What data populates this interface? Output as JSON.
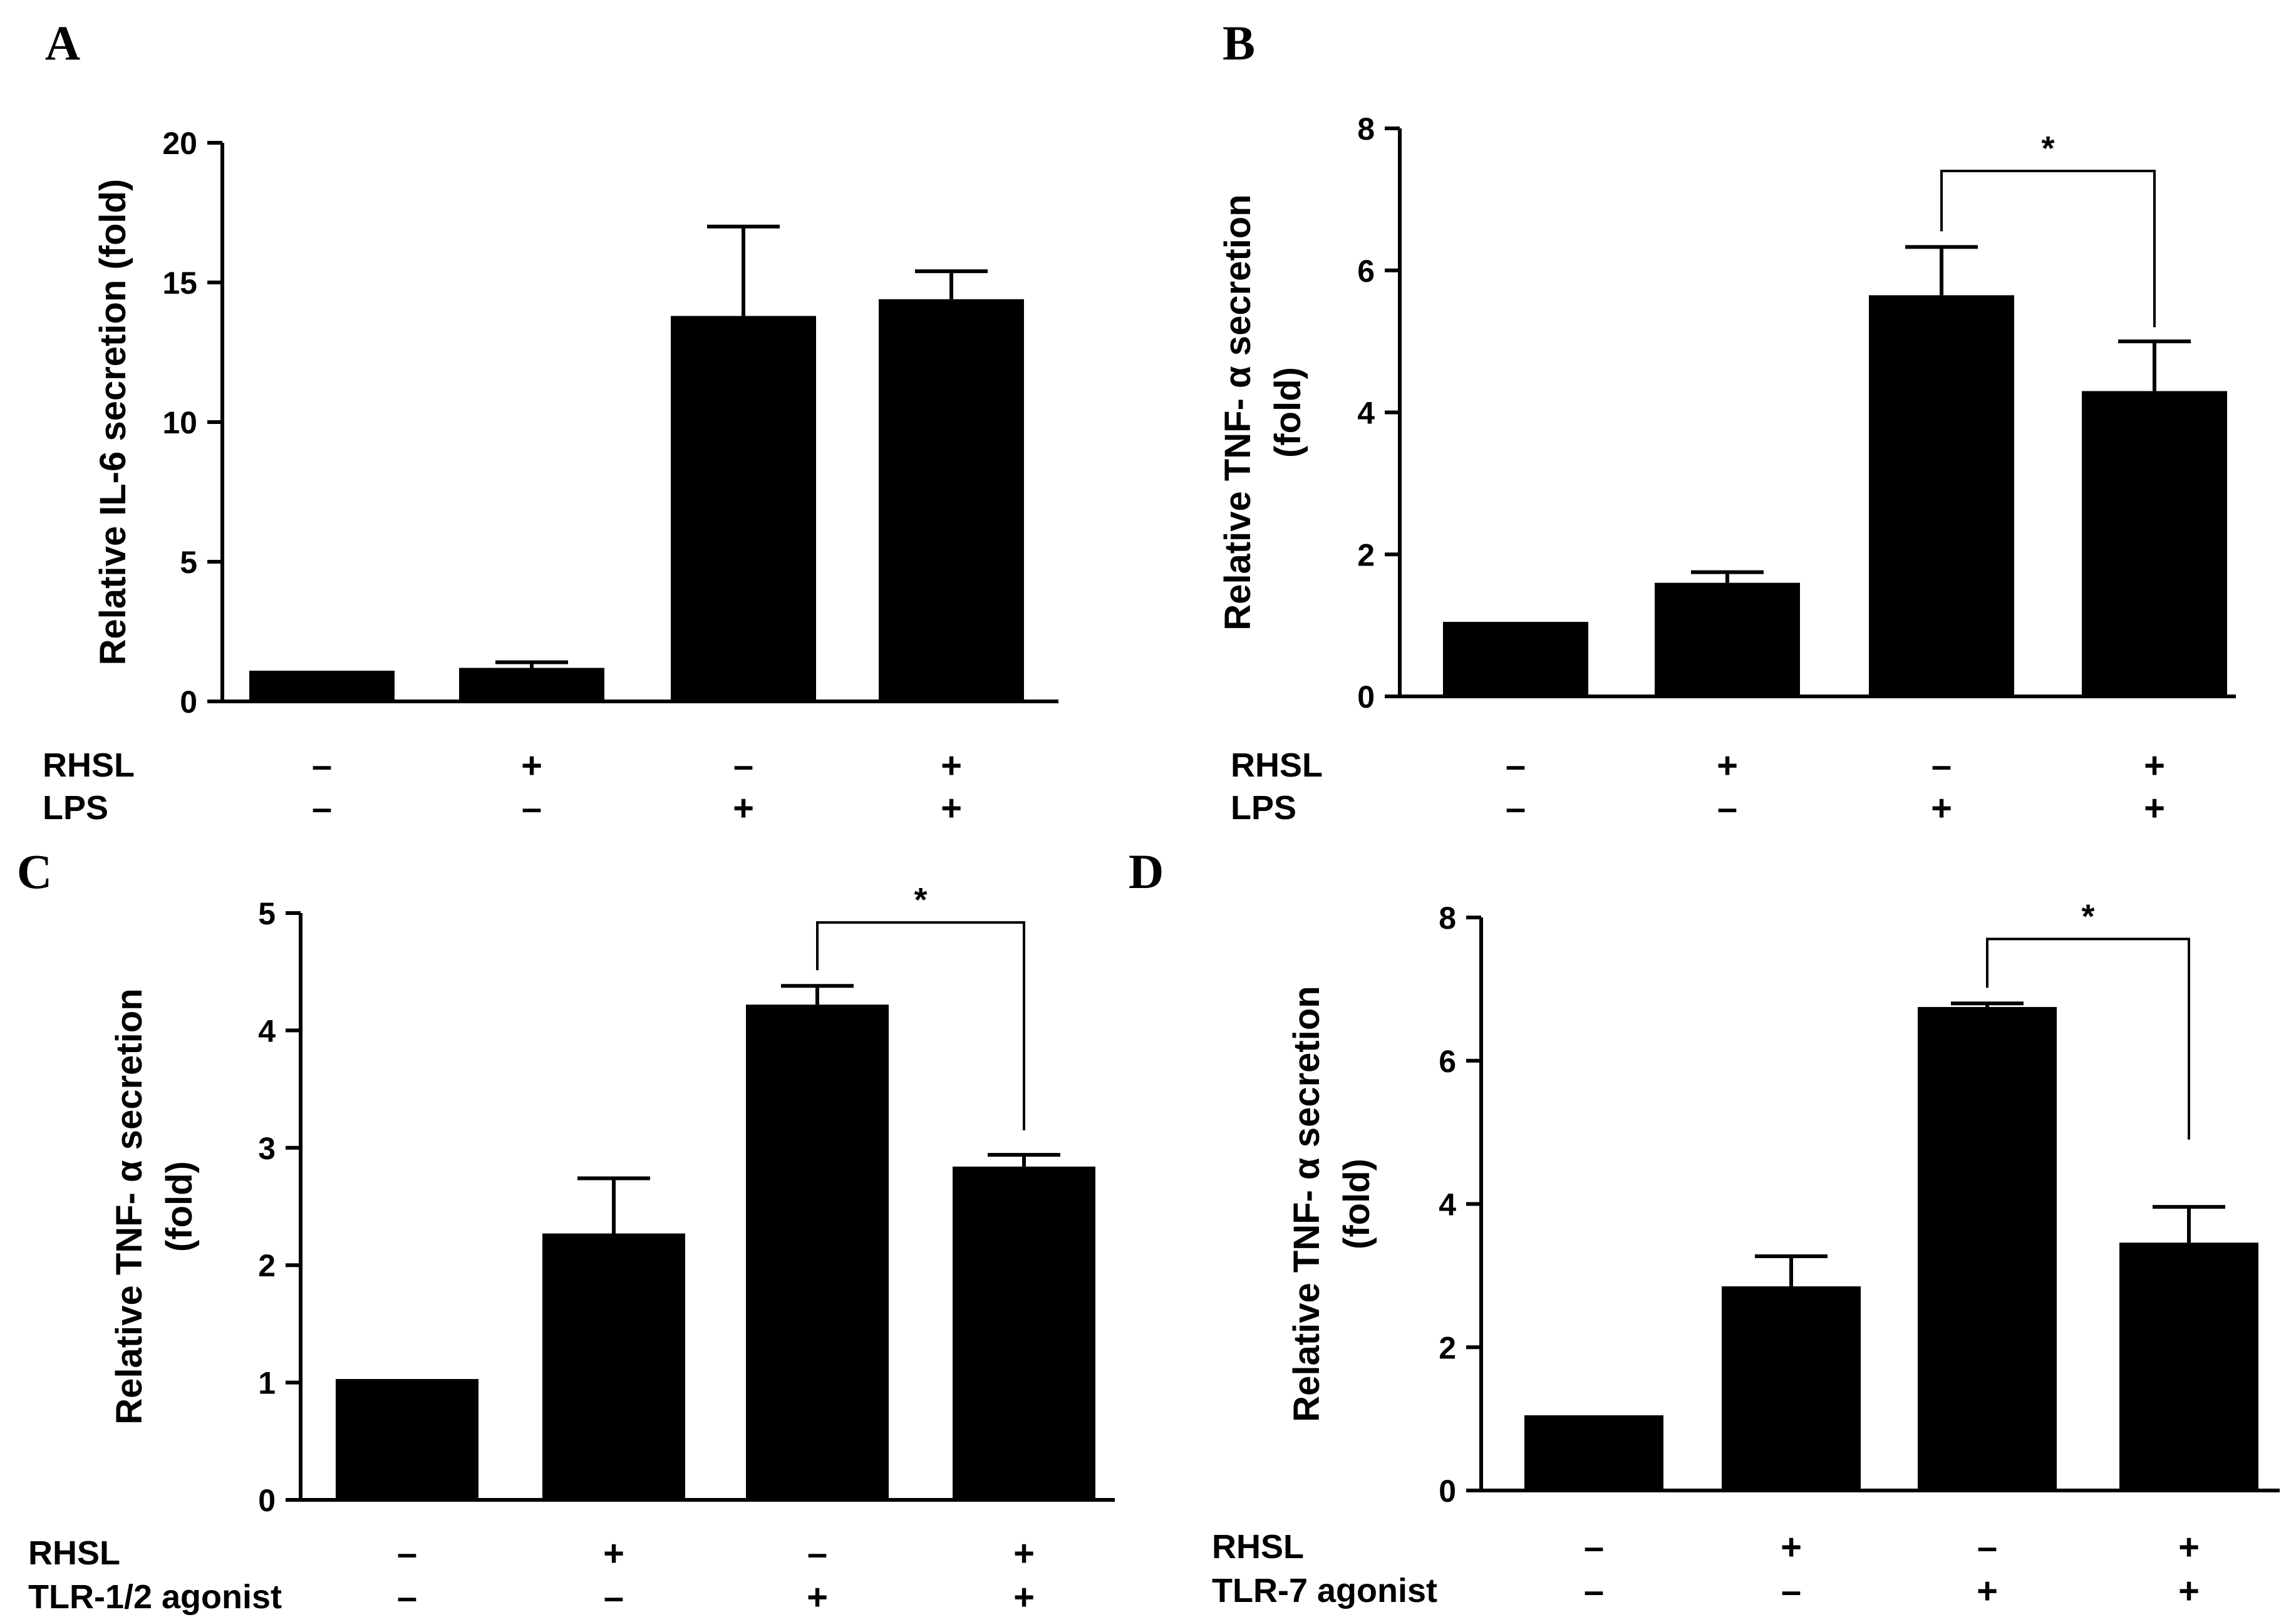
{
  "chart_data": [
    {
      "panel": "A",
      "type": "bar",
      "ylabel": [
        "Relative IL-6 secretion (fold)"
      ],
      "ylim": [
        0,
        20
      ],
      "yticks": [
        0,
        5,
        10,
        15,
        20
      ],
      "values": [
        1.1,
        1.2,
        13.8,
        14.4
      ],
      "errors": [
        0,
        0.2,
        3.2,
        1.0
      ],
      "factors": [
        {
          "name": "RHSL",
          "levels": [
            "–",
            "+",
            "–",
            "+"
          ]
        },
        {
          "name": "LPS",
          "levels": [
            "–",
            "–",
            "+",
            "+"
          ]
        }
      ],
      "significance": []
    },
    {
      "panel": "B",
      "type": "bar",
      "ylabel": [
        "Relative TNF- α secretion",
        "(fold)"
      ],
      "ylim": [
        0,
        8
      ],
      "yticks": [
        0,
        2,
        4,
        6,
        8
      ],
      "values": [
        1.05,
        1.6,
        5.65,
        4.3
      ],
      "errors": [
        0,
        0.15,
        0.68,
        0.7
      ],
      "factors": [
        {
          "name": "RHSL",
          "levels": [
            "–",
            "+",
            "–",
            "+"
          ]
        },
        {
          "name": "LPS",
          "levels": [
            "–",
            "–",
            "+",
            "+"
          ]
        }
      ],
      "significance": [
        {
          "from": 2,
          "to": 3,
          "label": "*",
          "y": 7.4,
          "drop_to": 5.2
        }
      ]
    },
    {
      "panel": "C",
      "type": "bar",
      "ylabel": [
        "Relative TNF- α secretion",
        "(fold)"
      ],
      "ylim": [
        0,
        5
      ],
      "yticks": [
        0,
        1,
        2,
        3,
        4,
        5
      ],
      "values": [
        1.03,
        2.27,
        4.22,
        2.84
      ],
      "errors": [
        0,
        0.47,
        0.16,
        0.1
      ],
      "factors": [
        {
          "name": "RHSL",
          "levels": [
            "–",
            "+",
            "–",
            "+"
          ]
        },
        {
          "name": "TLR-1/2 agonist",
          "levels": [
            "–",
            "–",
            "+",
            "+"
          ]
        }
      ],
      "significance": [
        {
          "from": 2,
          "to": 3,
          "label": "*",
          "y": 4.92,
          "drop_to": 3.15
        }
      ]
    },
    {
      "panel": "D",
      "type": "bar",
      "ylabel": [
        "Relative TNF- α secretion",
        "(fold)"
      ],
      "ylim": [
        0,
        8
      ],
      "yticks": [
        0,
        2,
        4,
        6,
        8
      ],
      "values": [
        1.05,
        2.85,
        6.75,
        3.46
      ],
      "errors": [
        0,
        0.42,
        0.05,
        0.5
      ],
      "factors": [
        {
          "name": "RHSL",
          "levels": [
            "–",
            "+",
            "–",
            "+"
          ]
        },
        {
          "name": "TLR-7 agonist",
          "levels": [
            "–",
            "–",
            "+",
            "+"
          ]
        }
      ],
      "significance": [
        {
          "from": 2,
          "to": 3,
          "label": "*",
          "y": 7.7,
          "drop_to": 4.9
        }
      ]
    }
  ],
  "colors": {
    "bar": "#000000",
    "axis": "#000000",
    "background": "#ffffff"
  }
}
